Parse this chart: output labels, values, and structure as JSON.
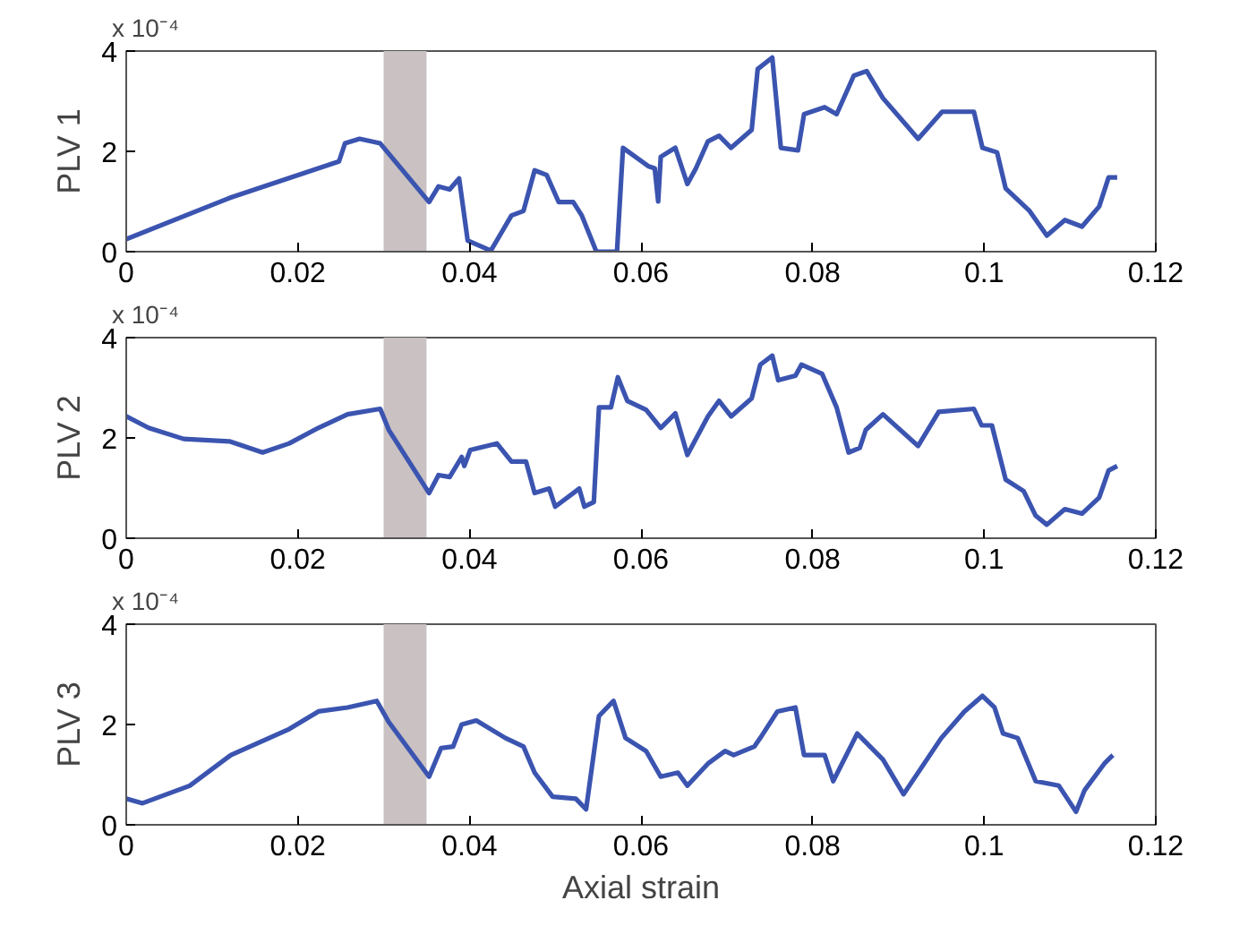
{
  "chart_data": [
    {
      "type": "line",
      "ylabel": "PLV 1",
      "annotations": [
        "x 10⁻⁴"
      ],
      "xlim": [
        0,
        0.12
      ],
      "xticks": [
        0,
        0.02,
        0.04,
        0.06,
        0.08,
        0.1,
        0.12
      ],
      "ylim": [
        0,
        4
      ],
      "yticks": [
        0,
        2,
        4
      ],
      "bands": [
        {
          "axis": "x",
          "from": 0.03,
          "to": 0.035,
          "color": "#c9c1c2"
        }
      ],
      "series": [
        {
          "color": "#3b54b0",
          "x": [
            0,
            0.0122,
            0.0248,
            0.0255,
            0.0272,
            0.0296,
            0.0353,
            0.0364,
            0.0377,
            0.0388,
            0.0398,
            0.0425,
            0.0449,
            0.0463,
            0.0476,
            0.049,
            0.0504,
            0.0521,
            0.0531,
            0.0548,
            0.0572,
            0.0579,
            0.0609,
            0.0616,
            0.062,
            0.0623,
            0.064,
            0.0654,
            0.0664,
            0.0678,
            0.0691,
            0.0705,
            0.0729,
            0.0736,
            0.0753,
            0.0763,
            0.0783,
            0.079,
            0.0814,
            0.0828,
            0.0848,
            0.0863,
            0.0882,
            0.0923,
            0.0951,
            0.0988,
            0.0998,
            0.1015,
            0.1025,
            0.1053,
            0.1073,
            0.1094,
            0.1114,
            0.1134,
            0.1145,
            0.1155
          ],
          "values": [
            0.25,
            1.08,
            1.8,
            2.16,
            2.25,
            2.16,
            0.99,
            1.3,
            1.24,
            1.46,
            0.22,
            0.02,
            0.72,
            0.81,
            1.62,
            1.53,
            0.99,
            0.99,
            0.72,
            0,
            0,
            2.07,
            1.7,
            1.66,
            1.0,
            1.89,
            2.07,
            1.35,
            1.66,
            2.2,
            2.31,
            2.07,
            2.43,
            3.64,
            3.87,
            2.07,
            2.02,
            2.74,
            2.88,
            2.74,
            3.51,
            3.6,
            3.06,
            2.25,
            2.79,
            2.79,
            2.07,
            1.98,
            1.26,
            0.81,
            0.32,
            0.63,
            0.5,
            0.9,
            1.48,
            1.48
          ]
        }
      ]
    },
    {
      "type": "line",
      "ylabel": "PLV 2",
      "annotations": [
        "x 10⁻⁴"
      ],
      "xlim": [
        0,
        0.12
      ],
      "xticks": [
        0,
        0.02,
        0.04,
        0.06,
        0.08,
        0.1,
        0.12
      ],
      "ylim": [
        0,
        4
      ],
      "yticks": [
        0,
        2,
        4
      ],
      "bands": [
        {
          "axis": "x",
          "from": 0.03,
          "to": 0.035,
          "color": "#c9c1c2"
        }
      ],
      "series": [
        {
          "color": "#3b54b0",
          "x": [
            0,
            0.0026,
            0.0067,
            0.0121,
            0.0159,
            0.019,
            0.0224,
            0.0258,
            0.0296,
            0.0306,
            0.0353,
            0.0364,
            0.0377,
            0.0391,
            0.0394,
            0.0401,
            0.0432,
            0.0449,
            0.0466,
            0.0476,
            0.0493,
            0.05,
            0.0528,
            0.0534,
            0.0545,
            0.0551,
            0.0565,
            0.0573,
            0.0584,
            0.0606,
            0.0623,
            0.064,
            0.0654,
            0.0678,
            0.0691,
            0.0705,
            0.0729,
            0.0739,
            0.0753,
            0.076,
            0.078,
            0.0787,
            0.0811,
            0.0828,
            0.0842,
            0.0855,
            0.0862,
            0.0882,
            0.0923,
            0.0947,
            0.0988,
            0.0997,
            0.1009,
            0.1025,
            0.1046,
            0.106,
            0.1073,
            0.1094,
            0.1114,
            0.1134,
            0.1145,
            0.1155
          ],
          "values": [
            2.43,
            2.2,
            1.98,
            1.93,
            1.71,
            1.89,
            2.2,
            2.47,
            2.58,
            2.16,
            0.9,
            1.26,
            1.22,
            1.62,
            1.44,
            1.76,
            1.89,
            1.53,
            1.53,
            0.9,
            0.99,
            0.63,
            0.99,
            0.63,
            0.72,
            2.61,
            2.61,
            3.21,
            2.74,
            2.56,
            2.2,
            2.49,
            1.66,
            2.43,
            2.74,
            2.43,
            2.79,
            3.46,
            3.64,
            3.15,
            3.24,
            3.46,
            3.28,
            2.61,
            1.71,
            1.8,
            2.16,
            2.47,
            1.84,
            2.52,
            2.58,
            2.25,
            2.25,
            1.17,
            0.94,
            0.45,
            0.27,
            0.58,
            0.49,
            0.81,
            1.35,
            1.44
          ]
        }
      ]
    },
    {
      "type": "line",
      "ylabel": "PLV 3",
      "xlabel": "Axial strain",
      "annotations": [
        "x 10⁻⁴"
      ],
      "xlim": [
        0,
        0.12
      ],
      "xticks": [
        0,
        0.02,
        0.04,
        0.06,
        0.08,
        0.1,
        0.12
      ],
      "ylim": [
        0,
        4
      ],
      "yticks": [
        0,
        2,
        4
      ],
      "bands": [
        {
          "axis": "x",
          "from": 0.03,
          "to": 0.035,
          "color": "#c9c1c2"
        }
      ],
      "series": [
        {
          "color": "#3b54b0",
          "x": [
            0,
            0.0019,
            0.0074,
            0.0122,
            0.0156,
            0.019,
            0.0224,
            0.0258,
            0.0292,
            0.0306,
            0.0353,
            0.0367,
            0.0381,
            0.0391,
            0.0408,
            0.0442,
            0.0463,
            0.0476,
            0.0497,
            0.0524,
            0.0536,
            0.0551,
            0.0568,
            0.0582,
            0.0606,
            0.0623,
            0.0643,
            0.0654,
            0.0678,
            0.0698,
            0.0708,
            0.0732,
            0.0739,
            0.0759,
            0.078,
            0.079,
            0.0814,
            0.0824,
            0.0852,
            0.0882,
            0.0906,
            0.095,
            0.0977,
            0.0998,
            0.1012,
            0.1022,
            0.1039,
            0.106,
            0.1087,
            0.1107,
            0.1117,
            0.114,
            0.115
          ],
          "values": [
            0.52,
            0.43,
            0.78,
            1.39,
            1.65,
            1.91,
            2.26,
            2.34,
            2.47,
            2.05,
            0.96,
            1.53,
            1.56,
            2.0,
            2.08,
            1.73,
            1.56,
            1.04,
            0.56,
            0.52,
            0.31,
            2.17,
            2.47,
            1.73,
            1.47,
            0.96,
            1.04,
            0.78,
            1.22,
            1.47,
            1.39,
            1.56,
            1.73,
            2.26,
            2.34,
            1.39,
            1.39,
            0.87,
            1.82,
            1.3,
            0.61,
            1.73,
            2.26,
            2.57,
            2.34,
            1.82,
            1.73,
            0.87,
            0.78,
            0.26,
            0.69,
            1.22,
            1.39
          ]
        }
      ]
    }
  ]
}
